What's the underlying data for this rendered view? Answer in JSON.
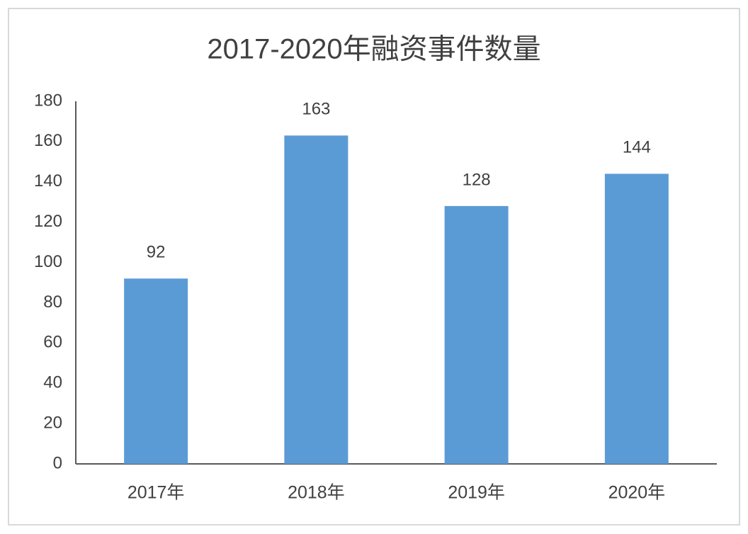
{
  "chart_data": {
    "type": "bar",
    "title": "2017-2020年融资事件数量",
    "categories": [
      "2017年",
      "2018年",
      "2019年",
      "2020年"
    ],
    "values": [
      92,
      163,
      128,
      144
    ],
    "color": "#5b9bd5",
    "ylim": [
      0,
      180
    ],
    "yticks": [
      0,
      20,
      40,
      60,
      80,
      100,
      120,
      140,
      160,
      180
    ],
    "grid": false
  }
}
